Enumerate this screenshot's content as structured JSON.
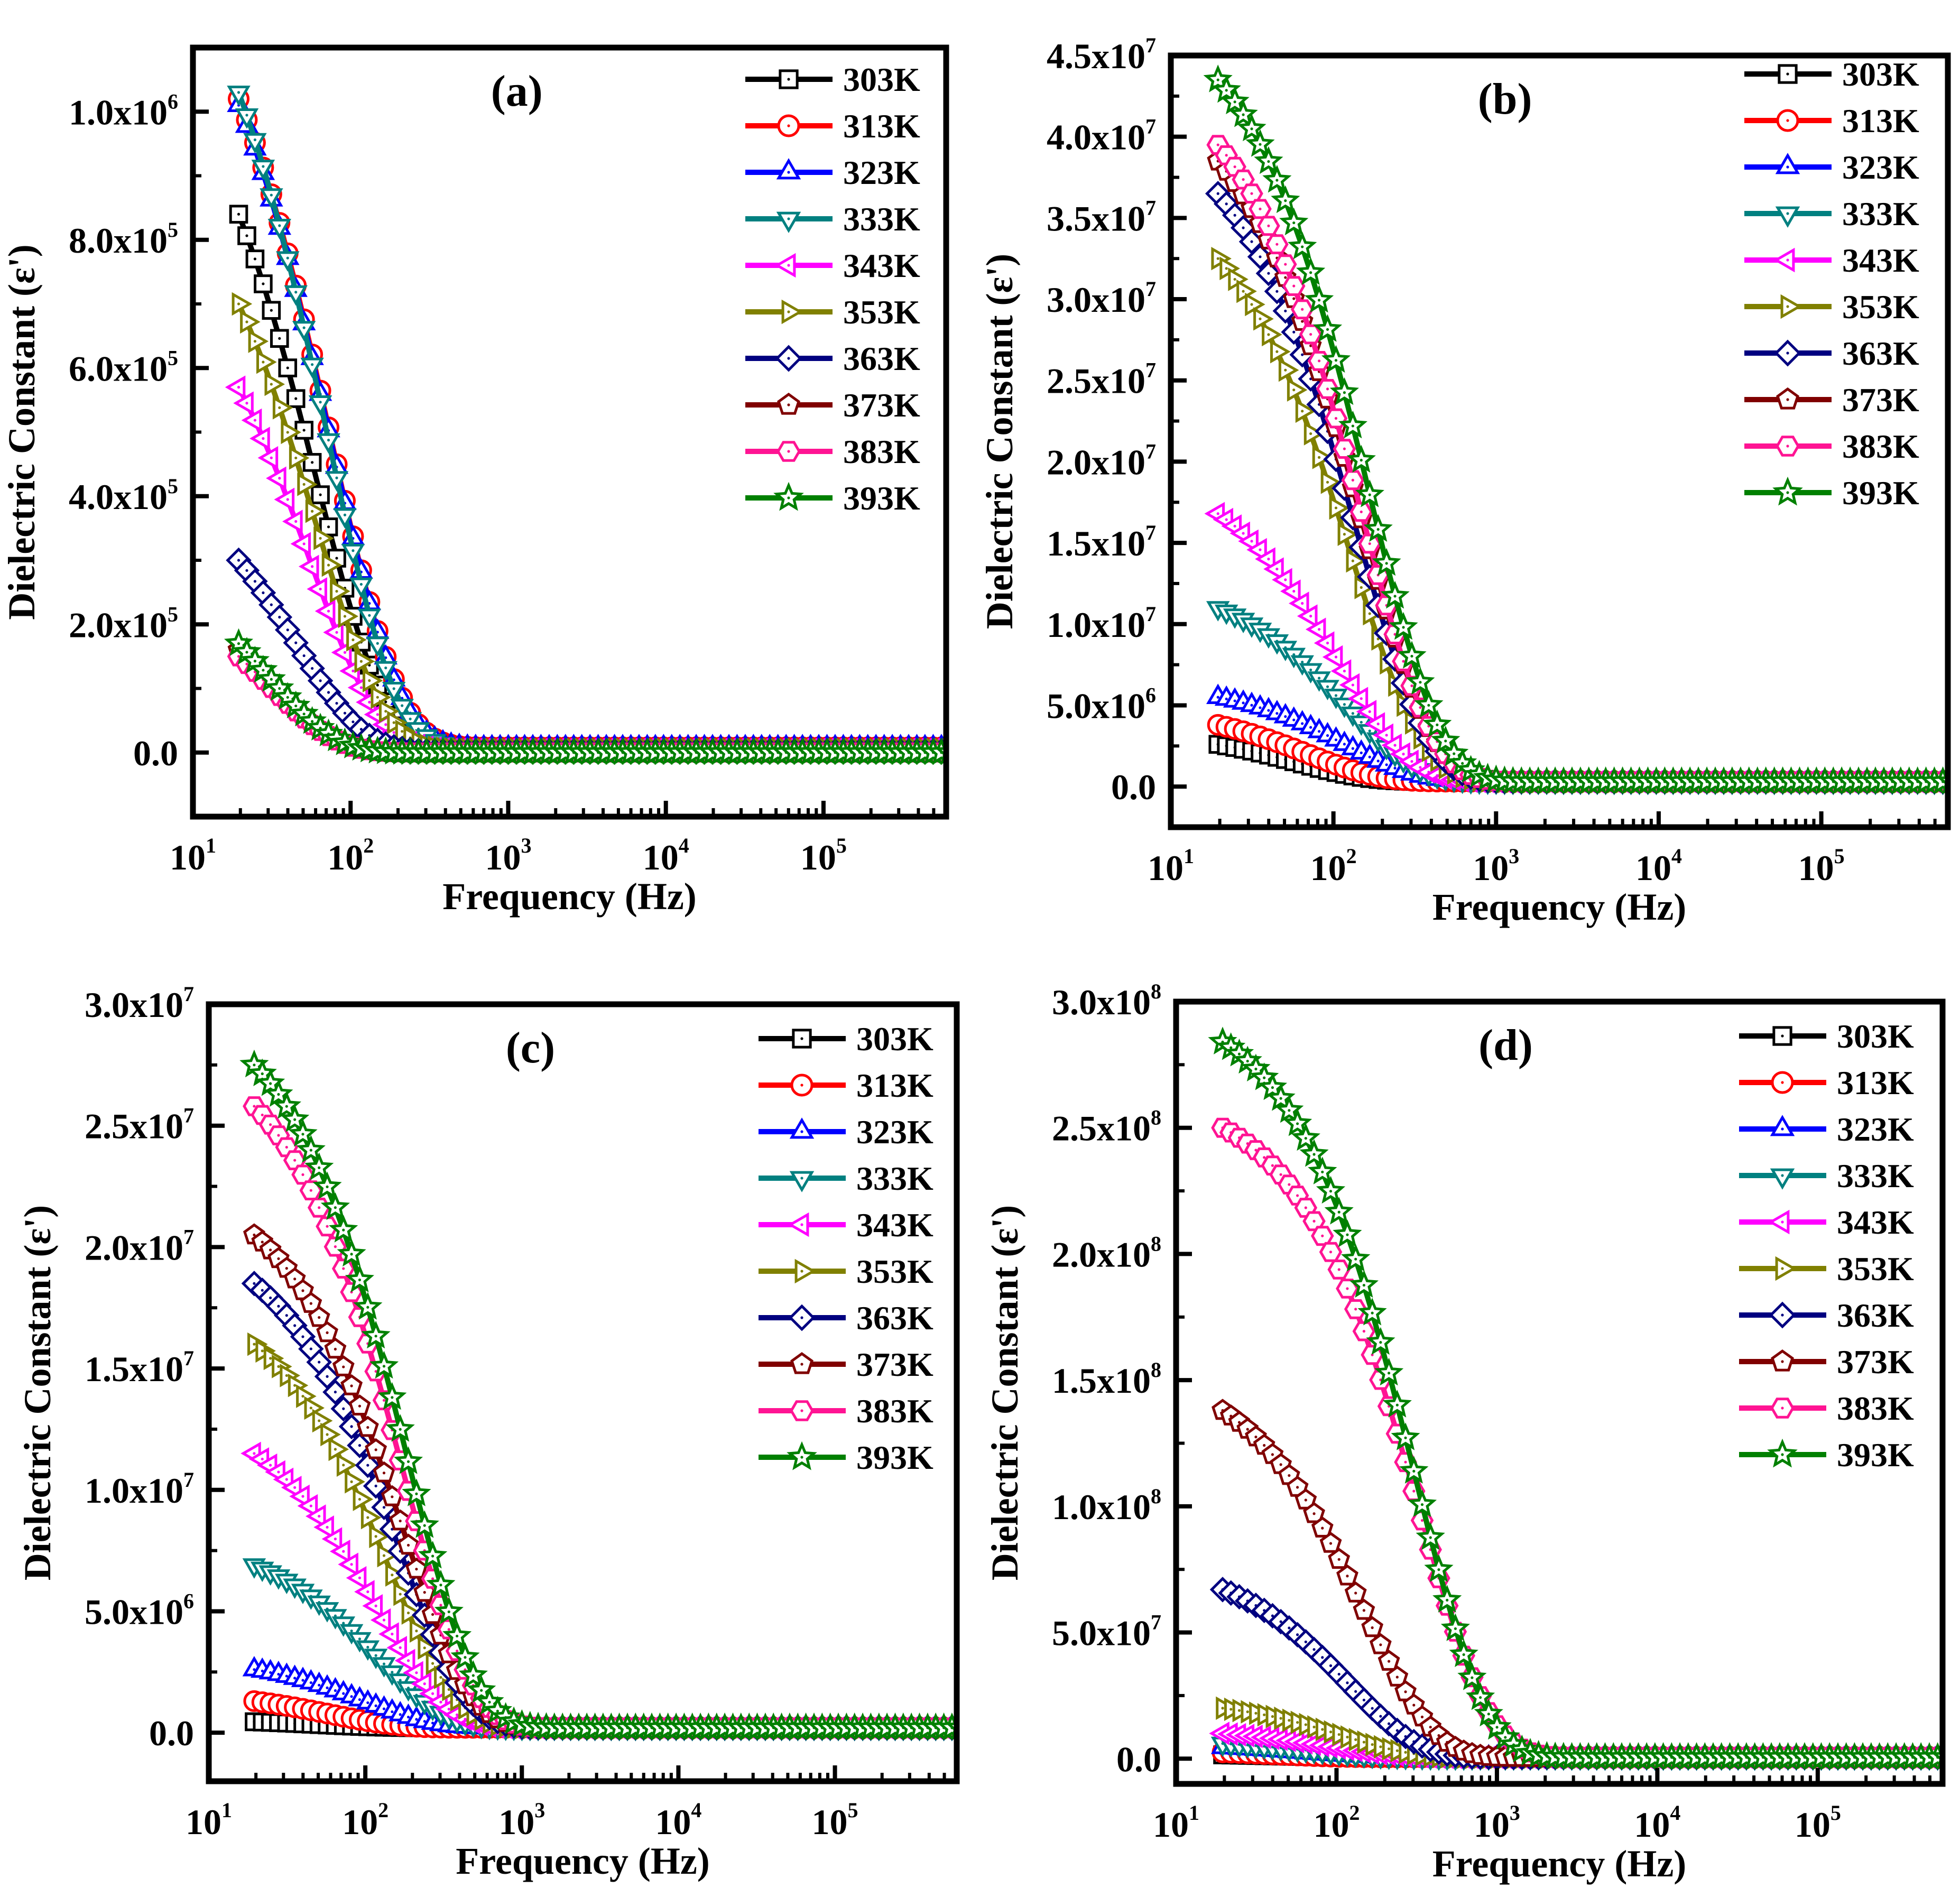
{
  "chart_data": [
    {
      "panel": "(a)",
      "type": "line",
      "xlabel": "Frequency (Hz)",
      "ylabel": "Dielectric Constant (ε')",
      "xscale": "log",
      "xlim": [
        10,
        600000
      ],
      "ylim": [
        -100000,
        1100000
      ],
      "xticks": [
        {
          "base": "10",
          "exp": "1"
        },
        {
          "base": "10",
          "exp": "2"
        },
        {
          "base": "10",
          "exp": "3"
        },
        {
          "base": "10",
          "exp": "4"
        },
        {
          "base": "10",
          "exp": "5"
        }
      ],
      "yticks": [
        {
          "v": 0,
          "m": "0.0",
          "e": ""
        },
        {
          "v": 200000,
          "m": "2.0x10",
          "e": "5"
        },
        {
          "v": 400000,
          "m": "4.0x10",
          "e": "5"
        },
        {
          "v": 600000,
          "m": "6.0x10",
          "e": "5"
        },
        {
          "v": 800000,
          "m": "8.0x10",
          "e": "5"
        },
        {
          "v": 1000000,
          "m": "1.0x10",
          "e": "6"
        }
      ],
      "series": [
        {
          "name": "303K",
          "y0": 840000,
          "tau": 60,
          "base": 8000,
          "alpha": 1.0
        },
        {
          "name": "313K",
          "y0": 1020000,
          "tau": 75,
          "base": 8000,
          "alpha": 1.0
        },
        {
          "name": "323K",
          "y0": 1010000,
          "tau": 75,
          "base": 8000,
          "alpha": 1.0
        },
        {
          "name": "333K",
          "y0": 1030000,
          "tau": 70,
          "base": 8000,
          "alpha": 1.0
        },
        {
          "name": "343K",
          "y0": 570000,
          "tau": 55,
          "base": 5000,
          "alpha": 1.0
        },
        {
          "name": "353K",
          "y0": 700000,
          "tau": 60,
          "base": 5000,
          "alpha": 1.0
        },
        {
          "name": "363K",
          "y0": 300000,
          "tau": 45,
          "base": 2000,
          "alpha": 1.0
        },
        {
          "name": "373K",
          "y0": 160000,
          "tau": 30,
          "base": 0,
          "alpha": 1.0
        },
        {
          "name": "383K",
          "y0": 150000,
          "tau": 30,
          "base": 0,
          "alpha": 1.0
        },
        {
          "name": "393K",
          "y0": 170000,
          "tau": 30,
          "base": 0,
          "alpha": 1.0
        }
      ]
    },
    {
      "panel": "(b)",
      "type": "line",
      "xlabel": "Frequency (Hz)",
      "ylabel": "Dielectric Constant (ε')",
      "xscale": "log",
      "xlim": [
        10,
        600000
      ],
      "ylim": [
        -2500000,
        45000000
      ],
      "xticks": [
        {
          "base": "10",
          "exp": "1"
        },
        {
          "base": "10",
          "exp": "2"
        },
        {
          "base": "10",
          "exp": "3"
        },
        {
          "base": "10",
          "exp": "4"
        },
        {
          "base": "10",
          "exp": "5"
        }
      ],
      "yticks": [
        {
          "v": 0,
          "m": "0.0",
          "e": ""
        },
        {
          "v": 5000000,
          "m": "5.0x10",
          "e": "6"
        },
        {
          "v": 10000000,
          "m": "1.0x10",
          "e": "7"
        },
        {
          "v": 15000000,
          "m": "1.5x10",
          "e": "7"
        },
        {
          "v": 20000000,
          "m": "2.0x10",
          "e": "7"
        },
        {
          "v": 25000000,
          "m": "2.5x10",
          "e": "7"
        },
        {
          "v": 30000000,
          "m": "3.0x10",
          "e": "7"
        },
        {
          "v": 35000000,
          "m": "3.5x10",
          "e": "7"
        },
        {
          "v": 40000000,
          "m": "4.0x10",
          "e": "7"
        },
        {
          "v": 45000000,
          "m": "4.5x10",
          "e": "7"
        }
      ],
      "series": [
        {
          "name": "303K",
          "y0": 2600000,
          "tau": 60,
          "base": 300000,
          "alpha": 1.0
        },
        {
          "name": "313K",
          "y0": 3800000,
          "tau": 70,
          "base": 300000,
          "alpha": 1.0
        },
        {
          "name": "323K",
          "y0": 5500000,
          "tau": 120,
          "base": 300000,
          "alpha": 1.0
        },
        {
          "name": "333K",
          "y0": 11000000,
          "tau": 120,
          "base": 300000,
          "alpha": 1.0
        },
        {
          "name": "343K",
          "y0": 16800000,
          "tau": 110,
          "base": 300000,
          "alpha": 1.0
        },
        {
          "name": "353K",
          "y0": 32500000,
          "tau": 130,
          "base": 300000,
          "alpha": 1.0
        },
        {
          "name": "363K",
          "y0": 36500000,
          "tau": 140,
          "base": 300000,
          "alpha": 1.0
        },
        {
          "name": "373K",
          "y0": 38500000,
          "tau": 150,
          "base": 300000,
          "alpha": 1.0
        },
        {
          "name": "383K",
          "y0": 39500000,
          "tau": 150,
          "base": 300000,
          "alpha": 1.0
        },
        {
          "name": "393K",
          "y0": 43500000,
          "tau": 165,
          "base": 300000,
          "alpha": 1.0
        }
      ]
    },
    {
      "panel": "(c)",
      "type": "line",
      "xlabel": "Frequency (Hz)",
      "ylabel": "Dielectric Constant (ε')",
      "xscale": "log",
      "xlim": [
        10,
        600000
      ],
      "ylim": [
        -2000000,
        30000000
      ],
      "xticks": [
        {
          "base": "10",
          "exp": "1"
        },
        {
          "base": "10",
          "exp": "2"
        },
        {
          "base": "10",
          "exp": "3"
        },
        {
          "base": "10",
          "exp": "4"
        },
        {
          "base": "10",
          "exp": "5"
        }
      ],
      "yticks": [
        {
          "v": 0,
          "m": "0.0",
          "e": ""
        },
        {
          "v": 5000000,
          "m": "5.0x10",
          "e": "6"
        },
        {
          "v": 10000000,
          "m": "1.0x10",
          "e": "7"
        },
        {
          "v": 15000000,
          "m": "1.5x10",
          "e": "7"
        },
        {
          "v": 20000000,
          "m": "2.0x10",
          "e": "7"
        },
        {
          "v": 25000000,
          "m": "2.5x10",
          "e": "7"
        },
        {
          "v": 30000000,
          "m": "3.0x10",
          "e": "7"
        }
      ],
      "series": [
        {
          "name": "303K",
          "y0": 450000,
          "tau": 50,
          "base": 200000,
          "alpha": 1.0
        },
        {
          "name": "313K",
          "y0": 1300000,
          "tau": 60,
          "base": 200000,
          "alpha": 1.0
        },
        {
          "name": "323K",
          "y0": 2600000,
          "tau": 100,
          "base": 200000,
          "alpha": 1.0
        },
        {
          "name": "333K",
          "y0": 6900000,
          "tau": 120,
          "base": 200000,
          "alpha": 1.0
        },
        {
          "name": "343K",
          "y0": 11500000,
          "tau": 120,
          "base": 200000,
          "alpha": 1.0
        },
        {
          "name": "353K",
          "y0": 16000000,
          "tau": 140,
          "base": 200000,
          "alpha": 1.0
        },
        {
          "name": "363K",
          "y0": 18500000,
          "tau": 160,
          "base": 200000,
          "alpha": 1.0
        },
        {
          "name": "373K",
          "y0": 20500000,
          "tau": 170,
          "base": 200000,
          "alpha": 1.0
        },
        {
          "name": "383K",
          "y0": 25800000,
          "tau": 175,
          "base": 200000,
          "alpha": 1.0
        },
        {
          "name": "393K",
          "y0": 27500000,
          "tau": 185,
          "base": 200000,
          "alpha": 1.0
        }
      ]
    },
    {
      "panel": "(d)",
      "type": "line",
      "xlabel": "Frequency (Hz)",
      "ylabel": "Dielectric Constant (ε')",
      "xscale": "log",
      "xlim": [
        10,
        600000
      ],
      "ylim": [
        -10000000,
        300000000
      ],
      "xticks": [
        {
          "base": "10",
          "exp": "1"
        },
        {
          "base": "10",
          "exp": "2"
        },
        {
          "base": "10",
          "exp": "3"
        },
        {
          "base": "10",
          "exp": "4"
        },
        {
          "base": "10",
          "exp": "5"
        }
      ],
      "yticks": [
        {
          "v": 0,
          "m": "0.0",
          "e": ""
        },
        {
          "v": 50000000,
          "m": "5.0x10",
          "e": "7"
        },
        {
          "v": 100000000,
          "m": "1.0x10",
          "e": "8"
        },
        {
          "v": 150000000,
          "m": "1.5x10",
          "e": "8"
        },
        {
          "v": 200000000,
          "m": "2.0x10",
          "e": "8"
        },
        {
          "v": 250000000,
          "m": "2.5x10",
          "e": "8"
        },
        {
          "v": 300000000,
          "m": "3.0x10",
          "e": "8"
        }
      ],
      "series": [
        {
          "name": "303K",
          "y0": 1500000,
          "tau": 40,
          "base": 500000,
          "alpha": 1.0
        },
        {
          "name": "313K",
          "y0": 2500000,
          "tau": 40,
          "base": 500000,
          "alpha": 1.0
        },
        {
          "name": "323K",
          "y0": 4500000,
          "tau": 60,
          "base": 500000,
          "alpha": 1.0
        },
        {
          "name": "333K",
          "y0": 6000000,
          "tau": 70,
          "base": 500000,
          "alpha": 1.0
        },
        {
          "name": "343K",
          "y0": 10000000,
          "tau": 90,
          "base": 500000,
          "alpha": 1.0
        },
        {
          "name": "353K",
          "y0": 20000000,
          "tau": 110,
          "base": 500000,
          "alpha": 1.0
        },
        {
          "name": "363K",
          "y0": 67000000,
          "tau": 120,
          "base": 500000,
          "alpha": 1.0
        },
        {
          "name": "373K",
          "y0": 138000000,
          "tau": 150,
          "base": 500000,
          "alpha": 1.0
        },
        {
          "name": "383K",
          "y0": 250000000,
          "tau": 330,
          "base": 500000,
          "alpha": 1.0
        },
        {
          "name": "393K",
          "y0": 284000000,
          "tau": 310,
          "base": 500000,
          "alpha": 1.0
        }
      ]
    }
  ],
  "series_style": [
    {
      "name": "303K",
      "color": "#000000",
      "marker": "square"
    },
    {
      "name": "313K",
      "color": "#ff0000",
      "marker": "circle"
    },
    {
      "name": "323K",
      "color": "#0000ff",
      "marker": "triangle-up"
    },
    {
      "name": "333K",
      "color": "#008080",
      "marker": "triangle-down"
    },
    {
      "name": "343K",
      "color": "#ff00ff",
      "marker": "triangle-left"
    },
    {
      "name": "353K",
      "color": "#808000",
      "marker": "triangle-right"
    },
    {
      "name": "363K",
      "color": "#000080",
      "marker": "diamond"
    },
    {
      "name": "373K",
      "color": "#800000",
      "marker": "pentagon"
    },
    {
      "name": "383K",
      "color": "#ff1493",
      "marker": "hexagon"
    },
    {
      "name": "393K",
      "color": "#008000",
      "marker": "star"
    }
  ]
}
